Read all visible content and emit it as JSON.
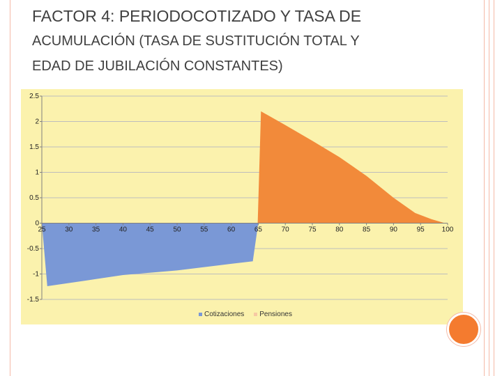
{
  "slide": {
    "title_lines": [
      "FACTOR 4: PERIODOCOTIZADO Y TASA DE",
      "ACUMULACIÓN (TASA DE SUSTITUCIÓN TOTAL Y",
      "EDAD DE JUBILACIÓN CONSTANTES)"
    ]
  },
  "colors": {
    "frame": "#f4b9a6",
    "accent_circle": "#f47b2f",
    "plot_background": "#fbf2ad",
    "cotizaciones": "#7a98d6",
    "pensiones": "#f28a3a"
  },
  "chart_data": {
    "type": "area",
    "title": "",
    "xlabel": "",
    "ylabel": "",
    "xlim": [
      25,
      100
    ],
    "ylim": [
      -1.5,
      2.5
    ],
    "x_ticks": [
      25,
      30,
      35,
      40,
      45,
      50,
      55,
      60,
      65,
      70,
      75,
      80,
      85,
      90,
      95,
      100
    ],
    "y_ticks": [
      2.5,
      2,
      1.5,
      1,
      0.5,
      0,
      -0.5,
      -1,
      -1.5
    ],
    "grid": true,
    "legend_position": "bottom",
    "series": [
      {
        "name": "Cotizaciones",
        "color": "#7a98d6",
        "x": [
          25,
          26,
          35,
          40,
          50,
          60,
          64,
          65
        ],
        "y": [
          0,
          -1.24,
          -1.1,
          -1.02,
          -0.93,
          -0.8,
          -0.75,
          0
        ]
      },
      {
        "name": "Pensiones",
        "color": "#f28a3a",
        "x": [
          64.9,
          65.5,
          70,
          75,
          80,
          85,
          90,
          94,
          97,
          99.5
        ],
        "y": [
          0,
          2.2,
          1.93,
          1.62,
          1.3,
          0.93,
          0.5,
          0.2,
          0.08,
          0
        ]
      }
    ]
  }
}
